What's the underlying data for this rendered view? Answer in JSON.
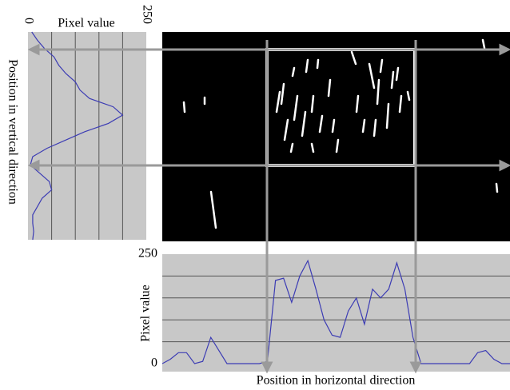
{
  "chart_data": [
    {
      "type": "line",
      "orientation": "vertical",
      "title": "Pixel value",
      "y_label": "Position in vertical direction",
      "xlim": [
        0,
        250
      ],
      "xticks": [
        0,
        250
      ],
      "grid_values": [
        50,
        100,
        150,
        200
      ],
      "color": "#3c3cb4",
      "values": [
        8,
        20,
        35,
        55,
        65,
        80,
        100,
        110,
        130,
        180,
        200,
        170,
        120,
        80,
        40,
        10,
        5,
        25,
        45,
        50,
        30,
        20,
        10,
        10,
        12,
        10
      ]
    },
    {
      "type": "line",
      "orientation": "horizontal",
      "x_label": "Position in horizontal direction",
      "y_label": "Pixel value",
      "ylim": [
        0,
        250
      ],
      "yticks": [
        0,
        250
      ],
      "grid_values": [
        50,
        100,
        150,
        200
      ],
      "color": "#3c3cb4",
      "values": [
        0,
        10,
        25,
        25,
        0,
        5,
        60,
        30,
        0,
        0,
        0,
        0,
        0,
        5,
        190,
        195,
        140,
        200,
        235,
        170,
        100,
        65,
        60,
        120,
        150,
        90,
        170,
        150,
        170,
        230,
        170,
        60,
        0,
        0,
        0,
        0,
        0,
        0,
        0,
        25,
        30,
        10,
        0,
        0
      ]
    }
  ]
}
